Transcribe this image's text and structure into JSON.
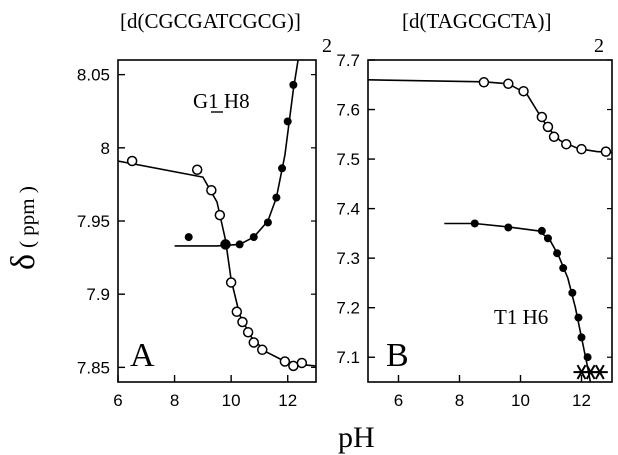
{
  "chart_data": [
    {
      "type": "scatter",
      "title": "[d(CGCGATCGCG)]",
      "title_subscript": "2",
      "panel_label": "A",
      "annotation": "G1 H8",
      "xlabel": "pH",
      "ylabel": "δ",
      "ylabel_units": "( ppm )",
      "xlim": [
        6,
        13
      ],
      "ylim": [
        7.84,
        8.06
      ],
      "xticks": [
        6,
        8,
        10,
        12
      ],
      "yticks": [
        7.85,
        7.9,
        7.95,
        8.0,
        8.05
      ],
      "ytick_labels": [
        "7.85",
        "7.9",
        "7.95",
        "8",
        "8.05"
      ],
      "series": [
        {
          "marker": "open-circle",
          "x": [
            6.5,
            8.8,
            9.3,
            9.6,
            9.8,
            10.0,
            10.2,
            10.4,
            10.6,
            10.8,
            11.1,
            11.9,
            12.2,
            12.5
          ],
          "y": [
            7.991,
            7.985,
            7.971,
            7.954,
            7.934,
            7.908,
            7.888,
            7.881,
            7.874,
            7.867,
            7.862,
            7.854,
            7.851,
            7.853
          ]
        },
        {
          "marker": "filled-circle",
          "x": [
            8.5,
            9.8,
            10.3,
            10.8,
            11.3,
            11.6,
            11.8,
            12.0,
            12.2
          ],
          "y": [
            7.939,
            7.934,
            7.934,
            7.939,
            7.949,
            7.966,
            7.986,
            8.018,
            8.043
          ]
        }
      ]
    },
    {
      "type": "scatter",
      "title": "[d(TAGCGCTA)]",
      "title_subscript": "2",
      "panel_label": "B",
      "annotation": "T1 H6",
      "xlabel": "pH",
      "xlim": [
        5,
        13
      ],
      "ylim": [
        7.05,
        7.7
      ],
      "xticks": [
        6,
        8,
        10,
        12
      ],
      "yticks": [
        7.1,
        7.2,
        7.3,
        7.4,
        7.5,
        7.6,
        7.7
      ],
      "ytick_labels": [
        "7.1",
        "7.2",
        "7.3",
        "7.4",
        "7.5",
        "7.6",
        "7.7"
      ],
      "series": [
        {
          "marker": "open-circle",
          "x": [
            8.8,
            9.6,
            10.1,
            10.7,
            10.9,
            11.1,
            11.5,
            12.0,
            12.8
          ],
          "y": [
            7.655,
            7.652,
            7.637,
            7.585,
            7.565,
            7.545,
            7.53,
            7.52,
            7.515
          ]
        },
        {
          "marker": "filled-circle",
          "x": [
            8.5,
            9.6,
            10.7,
            10.9,
            11.2,
            11.4,
            11.7,
            11.9,
            12.0,
            12.2
          ],
          "y": [
            7.37,
            7.362,
            7.355,
            7.34,
            7.31,
            7.28,
            7.23,
            7.18,
            7.14,
            7.1
          ]
        },
        {
          "marker": "asterisk",
          "x": [
            12.0,
            12.3,
            12.6
          ],
          "y": [
            7.07,
            7.07,
            7.07
          ]
        }
      ]
    }
  ]
}
